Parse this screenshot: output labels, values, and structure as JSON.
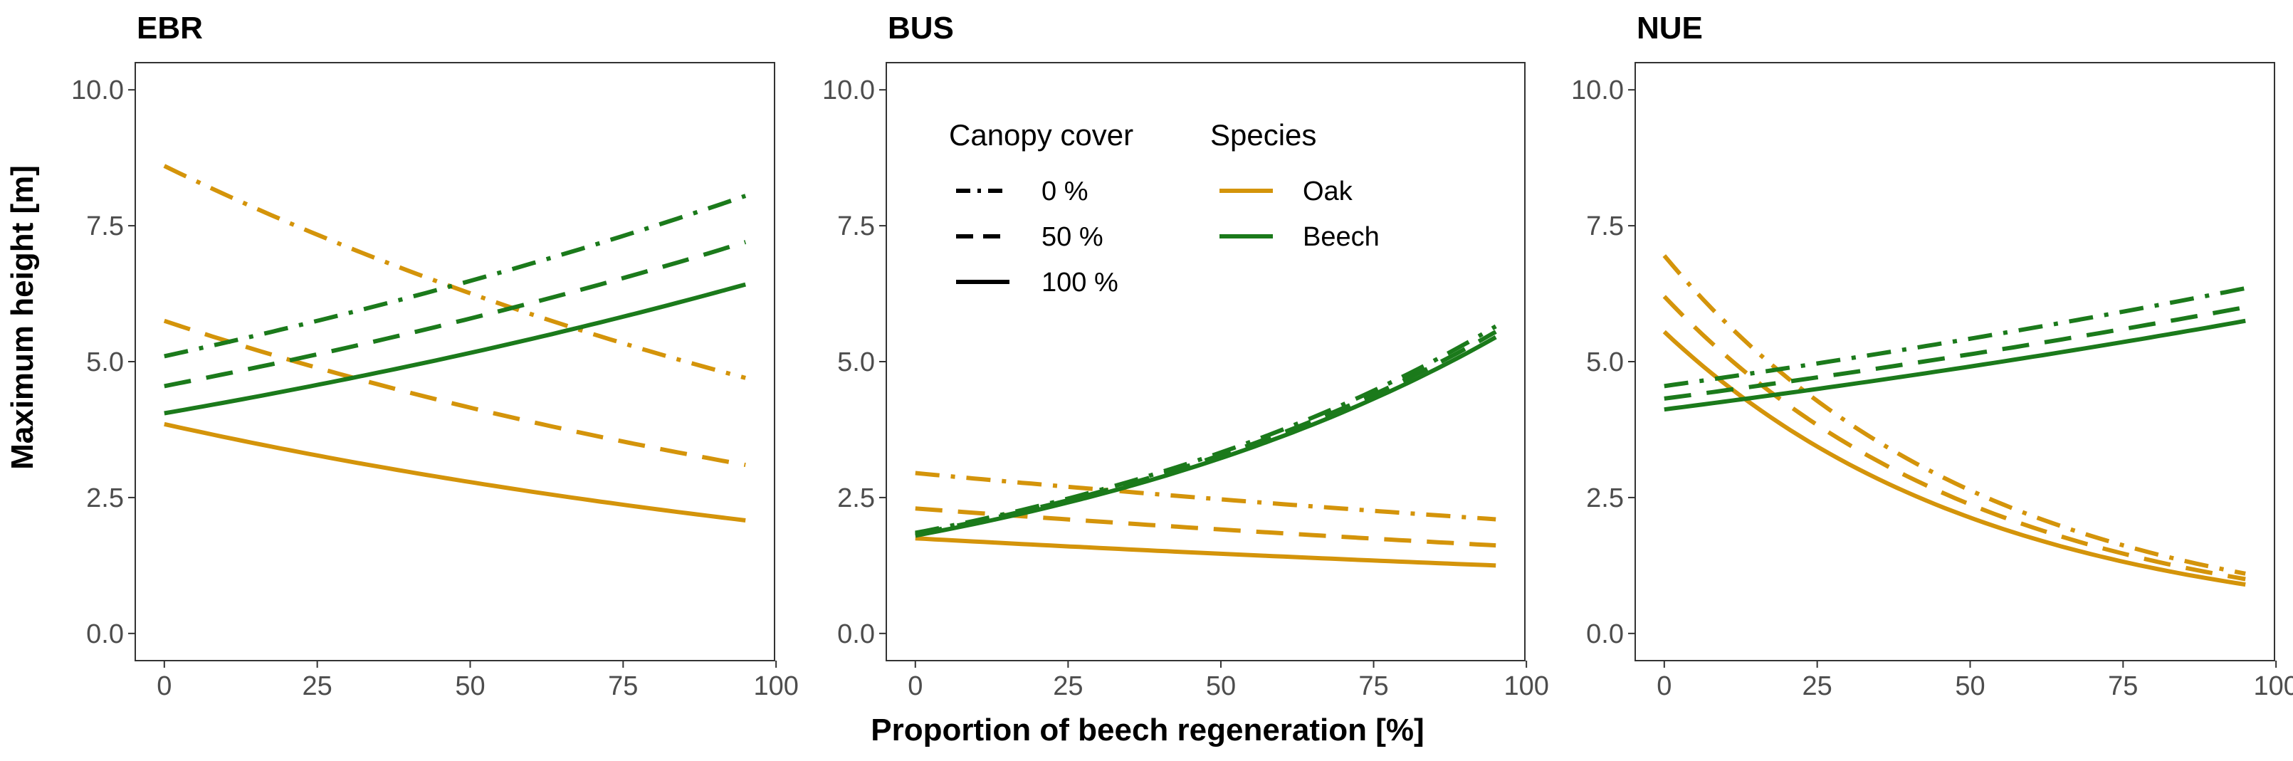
{
  "chart_data": {
    "type": "line",
    "ylabel": "Maximum height [m]",
    "xlabel": "Proportion of beech regeneration [%]",
    "xlim": [
      -4.75,
      99.75
    ],
    "ylim": [
      -0.5,
      10.5
    ],
    "xticks": [
      0,
      25,
      50,
      75,
      100
    ],
    "yticks": [
      0,
      2.5,
      5,
      7.5,
      10
    ],
    "xtick_labels": [
      "0",
      "25",
      "50",
      "75",
      "100"
    ],
    "ytick_labels": [
      "0.0",
      "2.5",
      "5.0",
      "7.5",
      "10.0"
    ],
    "legend": {
      "canopy_title": "Canopy cover",
      "species_title": "Species",
      "canopy": [
        {
          "label": "0 %",
          "linetype": "dashdot"
        },
        {
          "label": "50 %",
          "linetype": "dashed"
        },
        {
          "label": "100 %",
          "linetype": "solid"
        }
      ],
      "species": [
        {
          "label": "Oak",
          "color": "#D4940A"
        },
        {
          "label": "Beech",
          "color": "#1B7A1B"
        }
      ]
    },
    "panels": [
      {
        "title": "EBR",
        "series": [
          {
            "species": "Oak",
            "canopy": "0 %",
            "x": [
              0,
              95
            ],
            "y": [
              8.6,
              4.7
            ],
            "shape": "exp"
          },
          {
            "species": "Oak",
            "canopy": "50 %",
            "x": [
              0,
              95
            ],
            "y": [
              5.75,
              3.1
            ],
            "shape": "exp"
          },
          {
            "species": "Oak",
            "canopy": "100 %",
            "x": [
              0,
              95
            ],
            "y": [
              3.85,
              2.08
            ],
            "shape": "exp"
          },
          {
            "species": "Beech",
            "canopy": "0 %",
            "x": [
              0,
              95
            ],
            "y": [
              5.1,
              8.05
            ],
            "shape": "exp"
          },
          {
            "species": "Beech",
            "canopy": "50 %",
            "x": [
              0,
              95
            ],
            "y": [
              4.55,
              7.2
            ],
            "shape": "exp"
          },
          {
            "species": "Beech",
            "canopy": "100 %",
            "x": [
              0,
              95
            ],
            "y": [
              4.05,
              6.42
            ],
            "shape": "exp"
          }
        ]
      },
      {
        "title": "BUS",
        "series": [
          {
            "species": "Oak",
            "canopy": "0 %",
            "x": [
              0,
              95
            ],
            "y": [
              2.95,
              2.1
            ],
            "shape": "exp"
          },
          {
            "species": "Oak",
            "canopy": "50 %",
            "x": [
              0,
              95
            ],
            "y": [
              2.3,
              1.62
            ],
            "shape": "exp"
          },
          {
            "species": "Oak",
            "canopy": "100 %",
            "x": [
              0,
              95
            ],
            "y": [
              1.75,
              1.25
            ],
            "shape": "exp"
          },
          {
            "species": "Beech",
            "canopy": "0 %",
            "x": [
              0,
              95
            ],
            "y": [
              1.85,
              5.65
            ],
            "shape": "exp"
          },
          {
            "species": "Beech",
            "canopy": "50 %",
            "x": [
              0,
              95
            ],
            "y": [
              1.83,
              5.55
            ],
            "shape": "exp"
          },
          {
            "species": "Beech",
            "canopy": "100 %",
            "x": [
              0,
              95
            ],
            "y": [
              1.8,
              5.45
            ],
            "shape": "exp"
          }
        ]
      },
      {
        "title": "NUE",
        "series": [
          {
            "species": "Oak",
            "canopy": "0 %",
            "x": [
              0,
              95
            ],
            "y": [
              6.95,
              1.1
            ],
            "shape": "exp"
          },
          {
            "species": "Oak",
            "canopy": "50 %",
            "x": [
              0,
              95
            ],
            "y": [
              6.2,
              1.0
            ],
            "shape": "exp"
          },
          {
            "species": "Oak",
            "canopy": "100 %",
            "x": [
              0,
              95
            ],
            "y": [
              5.55,
              0.9
            ],
            "shape": "exp"
          },
          {
            "species": "Beech",
            "canopy": "0 %",
            "x": [
              0,
              95
            ],
            "y": [
              4.55,
              6.35
            ],
            "shape": "exp"
          },
          {
            "species": "Beech",
            "canopy": "50 %",
            "x": [
              0,
              95
            ],
            "y": [
              4.32,
              6.0
            ],
            "shape": "exp"
          },
          {
            "species": "Beech",
            "canopy": "100 %",
            "x": [
              0,
              95
            ],
            "y": [
              4.12,
              5.75
            ],
            "shape": "exp"
          }
        ]
      }
    ]
  }
}
